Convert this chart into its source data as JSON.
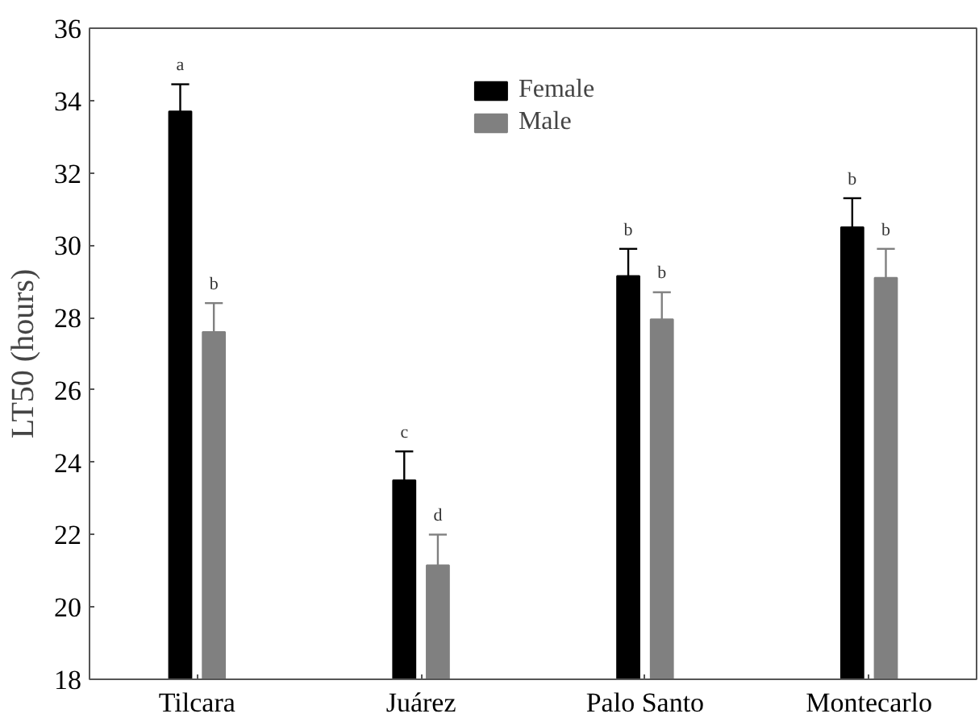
{
  "chart_data": {
    "type": "bar",
    "ylabel": "LT50 (hours)",
    "categories": [
      "Tilcara",
      "Juárez",
      "Palo Santo",
      "Montecarlo"
    ],
    "series": [
      {
        "name": "Female",
        "color": "#000000",
        "values": [
          33.7,
          23.5,
          29.15,
          30.5
        ],
        "errors": [
          [
            33.7,
            34.45
          ],
          [
            23.5,
            24.3
          ],
          [
            29.15,
            29.9
          ],
          [
            30.5,
            31.3
          ]
        ],
        "value_labels": [
          "a",
          "c",
          "b",
          "b"
        ]
      },
      {
        "name": "Male",
        "color": "#808080",
        "values": [
          27.6,
          21.15,
          27.95,
          29.1
        ],
        "errors": [
          [
            27.6,
            28.4
          ],
          [
            21.15,
            22.0
          ],
          [
            27.95,
            28.7
          ],
          [
            29.1,
            29.9
          ]
        ],
        "value_labels": [
          "b",
          "d",
          "b",
          "b"
        ]
      }
    ],
    "ylim": [
      18,
      36
    ],
    "yticks": [
      18,
      20,
      22,
      24,
      26,
      28,
      30,
      32,
      34,
      36
    ],
    "grid": false,
    "legend": "top"
  }
}
